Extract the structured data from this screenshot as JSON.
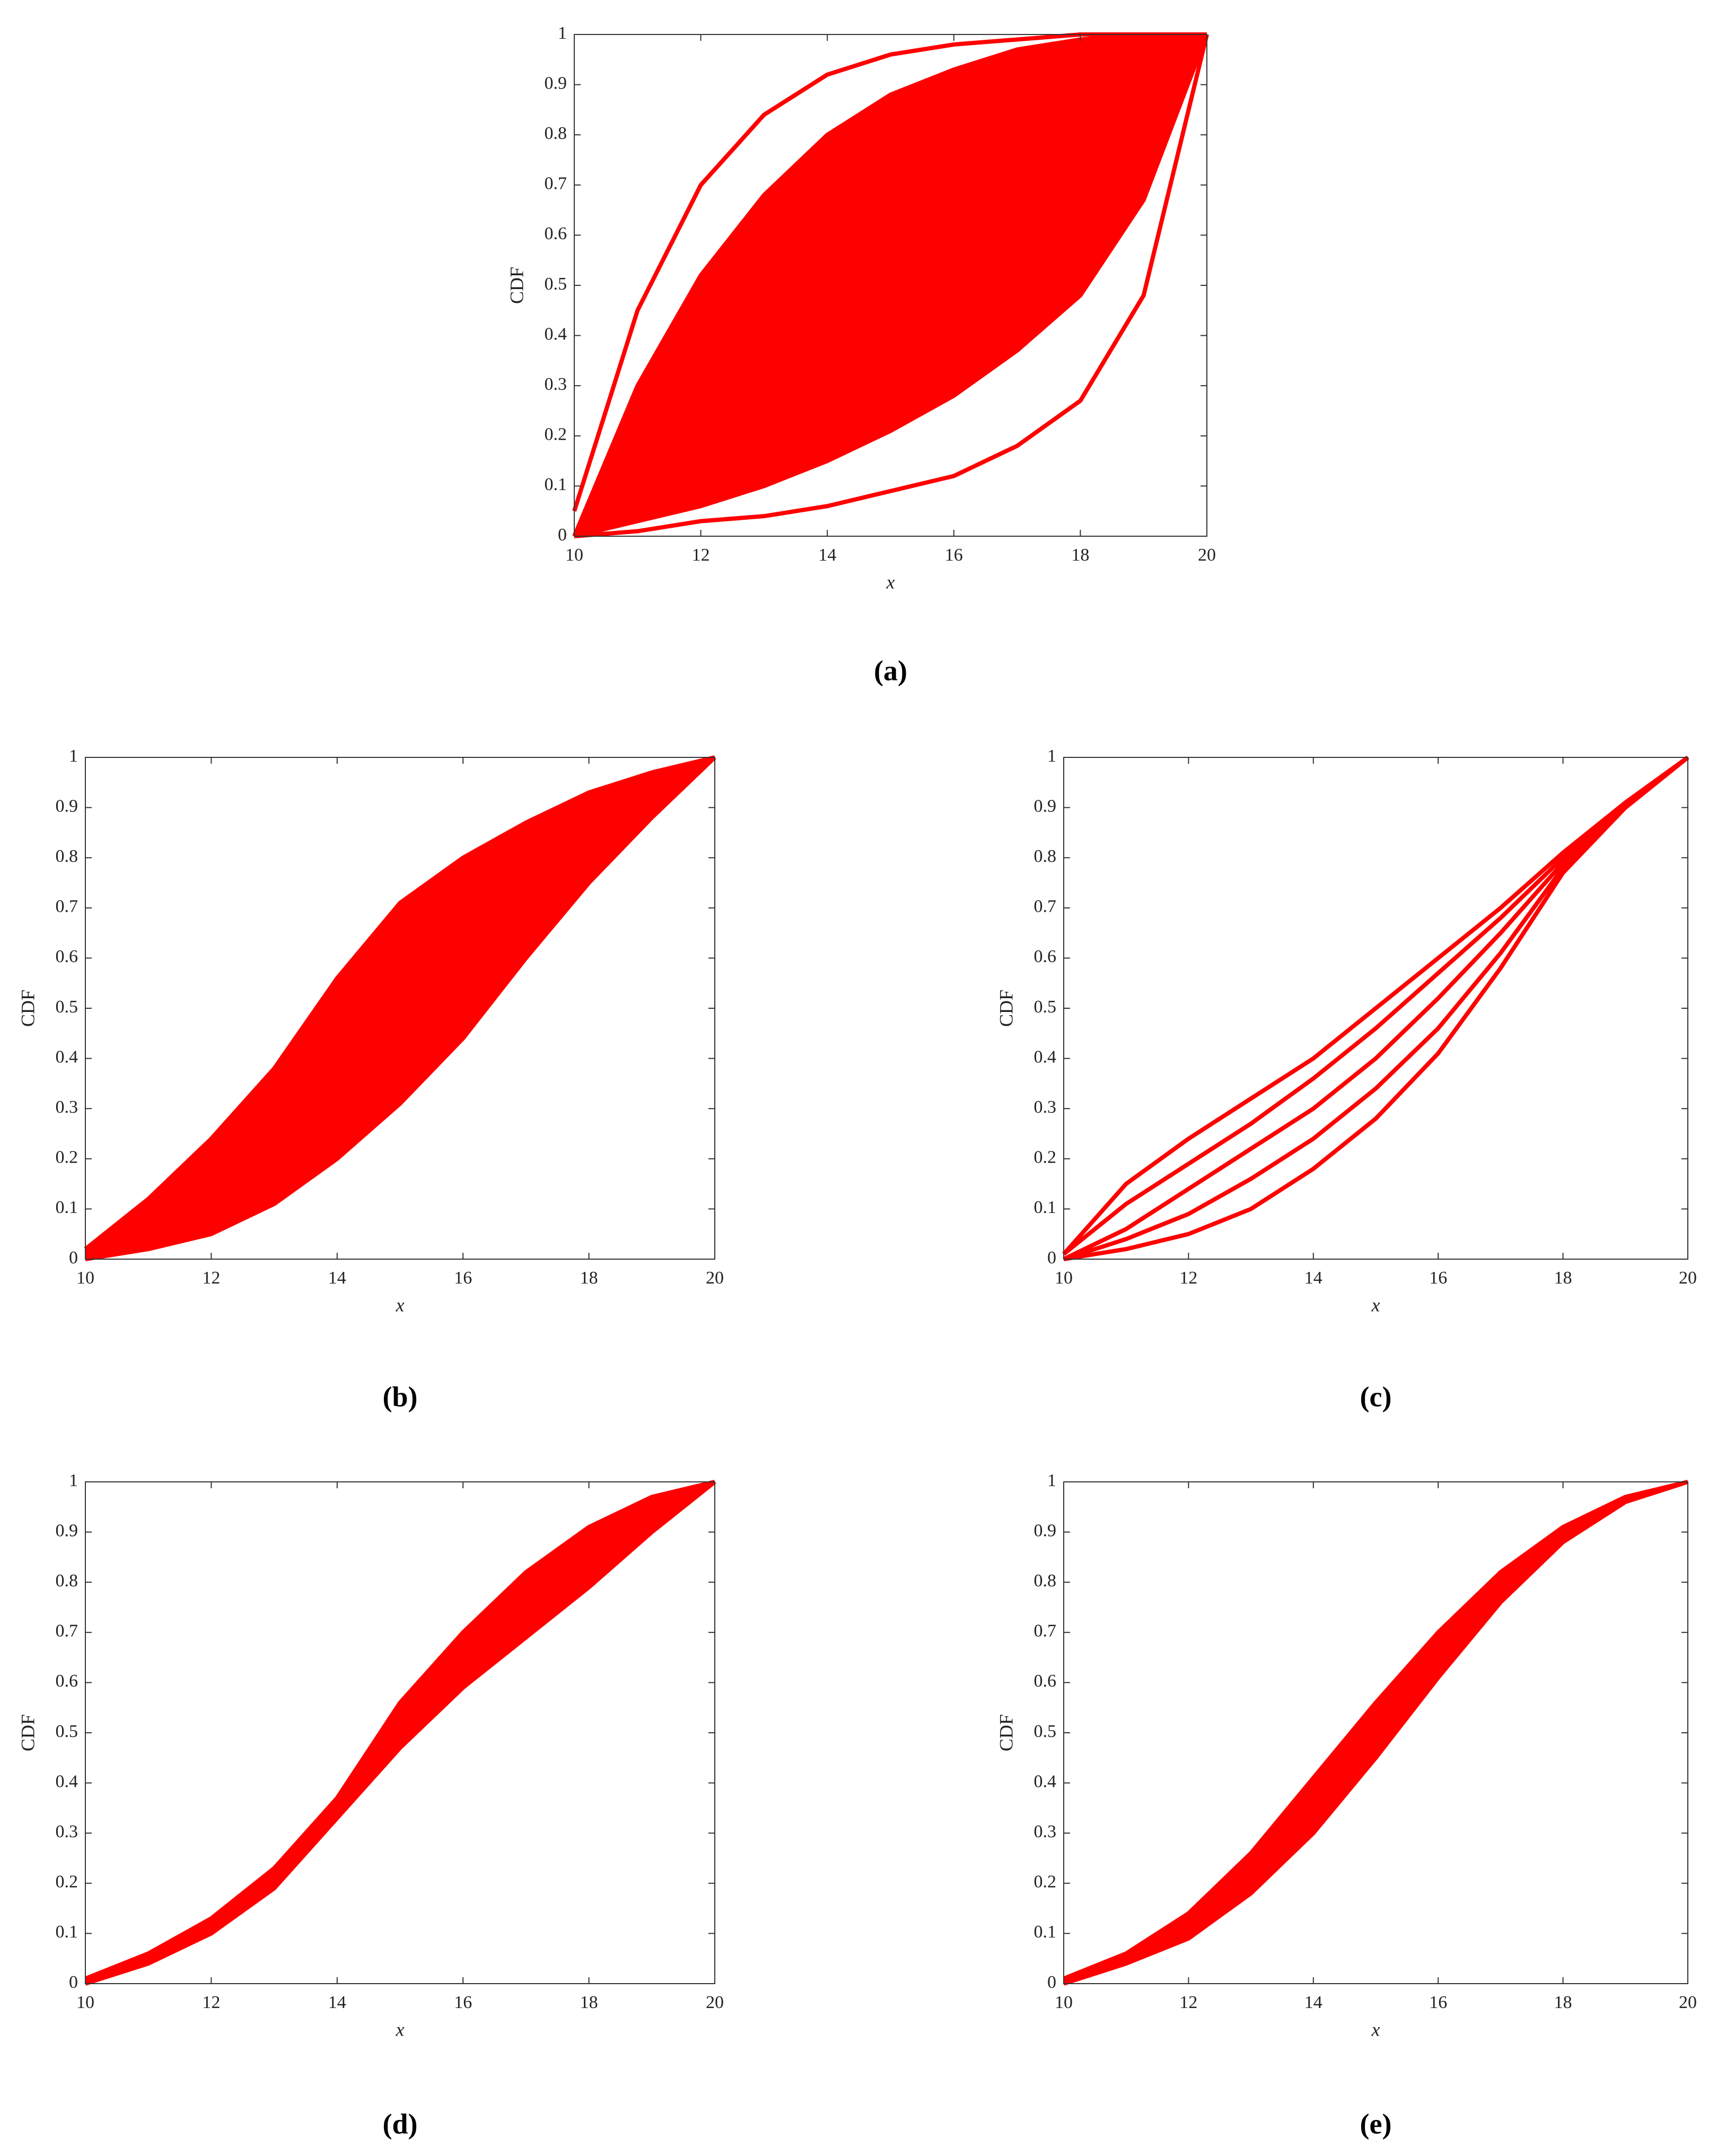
{
  "chart_data": [
    {
      "type": "line",
      "caption": "(a)",
      "xlabel": "x",
      "ylabel": "CDF",
      "x": [
        10,
        11,
        12,
        13,
        14,
        15,
        16,
        17,
        18,
        19,
        20
      ],
      "xlim": [
        10,
        20
      ],
      "ylim": [
        0,
        1
      ],
      "xticks": [
        10,
        12,
        14,
        16,
        18,
        20
      ],
      "yticks": [
        0,
        0.1,
        0.2,
        0.3,
        0.4,
        0.5,
        0.6,
        0.7,
        0.8,
        0.9,
        1
      ],
      "fill_between": [
        1,
        2
      ],
      "series": [
        {
          "color": "#ff0000",
          "values": [
            0.05,
            0.45,
            0.7,
            0.84,
            0.92,
            0.96,
            0.98,
            0.99,
            1,
            1,
            1
          ]
        },
        {
          "color": "#ff0000",
          "values": [
            0,
            0.3,
            0.52,
            0.68,
            0.8,
            0.88,
            0.93,
            0.97,
            0.99,
            1,
            1
          ]
        },
        {
          "color": "#ff0000",
          "values": [
            0,
            0.03,
            0.06,
            0.1,
            0.15,
            0.21,
            0.28,
            0.37,
            0.48,
            0.67,
            1
          ]
        },
        {
          "color": "#ff0000",
          "values": [
            0,
            0.01,
            0.03,
            0.04,
            0.06,
            0.09,
            0.12,
            0.18,
            0.27,
            0.48,
            1
          ]
        }
      ]
    },
    {
      "type": "line",
      "caption": "(b)",
      "xlabel": "x",
      "ylabel": "CDF",
      "x": [
        10,
        11,
        12,
        13,
        14,
        15,
        16,
        17,
        18,
        19,
        20
      ],
      "xlim": [
        10,
        20
      ],
      "ylim": [
        0,
        1
      ],
      "xticks": [
        10,
        12,
        14,
        16,
        18,
        20
      ],
      "yticks": [
        0,
        0.1,
        0.2,
        0.3,
        0.4,
        0.5,
        0.6,
        0.7,
        0.8,
        0.9,
        1
      ],
      "fill_between": [
        0,
        1
      ],
      "series": [
        {
          "color": "#ff0000",
          "values": [
            0.02,
            0.12,
            0.24,
            0.38,
            0.56,
            0.71,
            0.8,
            0.87,
            0.93,
            0.97,
            1
          ]
        },
        {
          "color": "#ff0000",
          "values": [
            0,
            0.02,
            0.05,
            0.11,
            0.2,
            0.31,
            0.44,
            0.6,
            0.75,
            0.88,
            1
          ]
        }
      ]
    },
    {
      "type": "line",
      "caption": "(c)",
      "xlabel": "x",
      "ylabel": "CDF",
      "x": [
        10,
        11,
        12,
        13,
        14,
        15,
        16,
        17,
        18,
        19,
        20
      ],
      "xlim": [
        10,
        20
      ],
      "ylim": [
        0,
        1
      ],
      "xticks": [
        10,
        12,
        14,
        16,
        18,
        20
      ],
      "yticks": [
        0,
        0.1,
        0.2,
        0.3,
        0.4,
        0.5,
        0.6,
        0.7,
        0.8,
        0.9,
        1
      ],
      "series": [
        {
          "color": "#ff0000",
          "values": [
            0.01,
            0.15,
            0.24,
            0.32,
            0.4,
            0.5,
            0.6,
            0.7,
            0.81,
            0.91,
            1
          ]
        },
        {
          "color": "#ff0000",
          "values": [
            0.01,
            0.11,
            0.19,
            0.27,
            0.36,
            0.46,
            0.57,
            0.68,
            0.8,
            0.9,
            1
          ]
        },
        {
          "color": "#ff0000",
          "values": [
            0,
            0.06,
            0.14,
            0.22,
            0.3,
            0.4,
            0.52,
            0.65,
            0.79,
            0.9,
            1
          ]
        },
        {
          "color": "#ff0000",
          "values": [
            0,
            0.04,
            0.09,
            0.16,
            0.24,
            0.34,
            0.46,
            0.61,
            0.78,
            0.9,
            1
          ]
        },
        {
          "color": "#ff0000",
          "values": [
            0,
            0.02,
            0.05,
            0.1,
            0.18,
            0.28,
            0.41,
            0.58,
            0.77,
            0.9,
            1
          ]
        }
      ]
    },
    {
      "type": "line",
      "caption": "(d)",
      "xlabel": "x",
      "ylabel": "CDF",
      "x": [
        10,
        11,
        12,
        13,
        14,
        15,
        16,
        17,
        18,
        19,
        20
      ],
      "xlim": [
        10,
        20
      ],
      "ylim": [
        0,
        1
      ],
      "xticks": [
        10,
        12,
        14,
        16,
        18,
        20
      ],
      "yticks": [
        0,
        0.1,
        0.2,
        0.3,
        0.4,
        0.5,
        0.6,
        0.7,
        0.8,
        0.9,
        1
      ],
      "fill_between": [
        0,
        1
      ],
      "series": [
        {
          "color": "#ff0000",
          "values": [
            0.01,
            0.06,
            0.13,
            0.23,
            0.37,
            0.56,
            0.7,
            0.82,
            0.91,
            0.97,
            1
          ]
        },
        {
          "color": "#ff0000",
          "values": [
            0,
            0.04,
            0.1,
            0.19,
            0.33,
            0.47,
            0.59,
            0.69,
            0.79,
            0.9,
            1
          ]
        }
      ]
    },
    {
      "type": "line",
      "caption": "(e)",
      "xlabel": "x",
      "ylabel": "CDF",
      "x": [
        10,
        11,
        12,
        13,
        14,
        15,
        16,
        17,
        18,
        19,
        20
      ],
      "xlim": [
        10,
        20
      ],
      "ylim": [
        0,
        1
      ],
      "xticks": [
        10,
        12,
        14,
        16,
        18,
        20
      ],
      "yticks": [
        0,
        0.1,
        0.2,
        0.3,
        0.4,
        0.5,
        0.6,
        0.7,
        0.8,
        0.9,
        1
      ],
      "fill_between": [
        0,
        1
      ],
      "series": [
        {
          "color": "#ff0000",
          "values": [
            0.01,
            0.06,
            0.14,
            0.26,
            0.41,
            0.56,
            0.7,
            0.82,
            0.91,
            0.97,
            1
          ]
        },
        {
          "color": "#ff0000",
          "values": [
            0,
            0.04,
            0.09,
            0.18,
            0.3,
            0.45,
            0.61,
            0.76,
            0.88,
            0.96,
            1
          ]
        }
      ]
    }
  ]
}
